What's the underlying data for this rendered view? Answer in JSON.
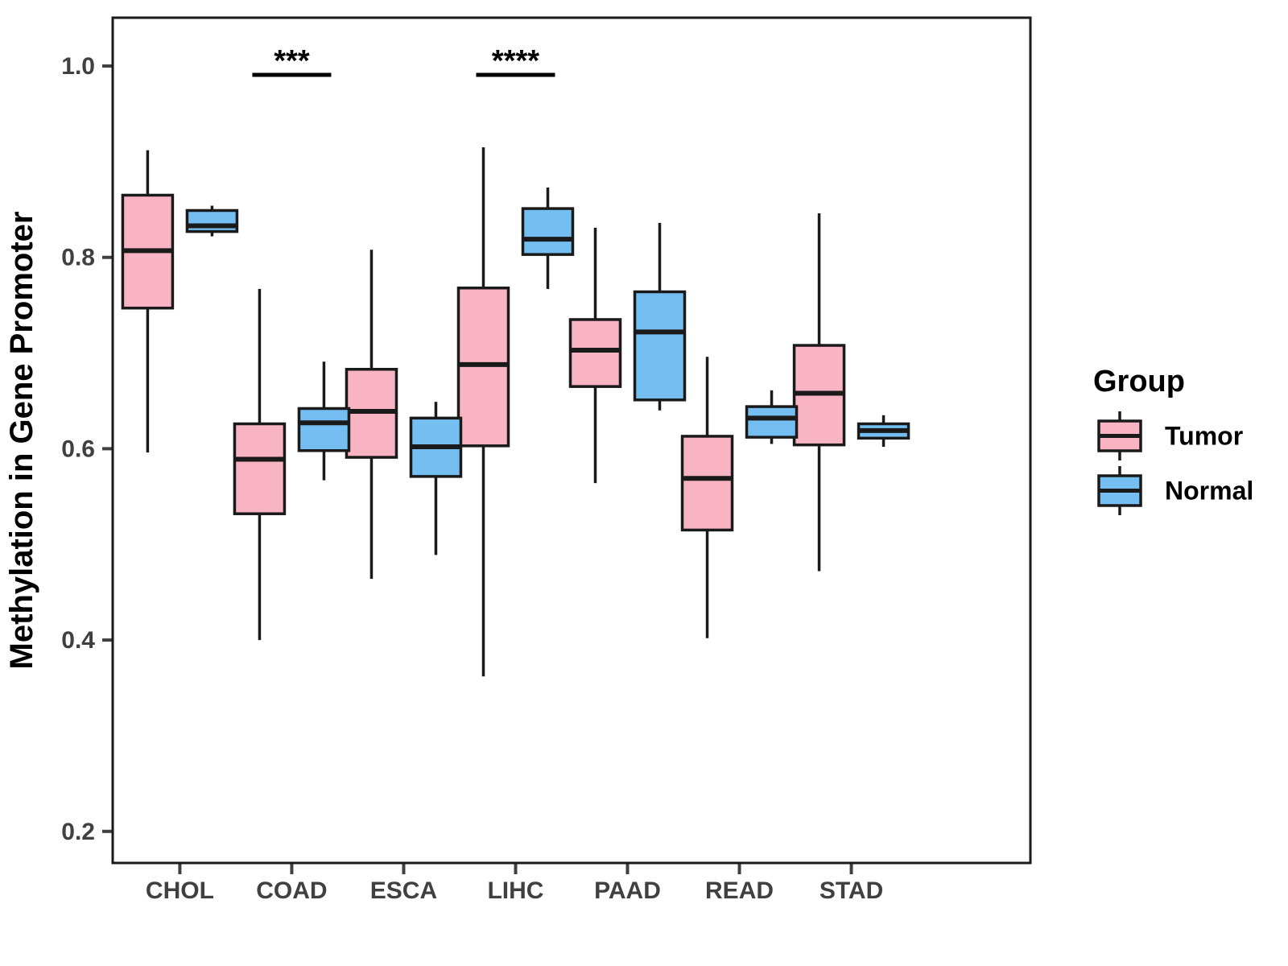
{
  "figure": {
    "background": "#FFFFFF"
  },
  "chart_data": {
    "type": "boxplot",
    "title": "",
    "xlabel": "",
    "ylabel": "Methylation in Gene Promoter",
    "ylim": [
      0.167,
      1.0505
    ],
    "yticks": [
      0.2,
      0.4,
      0.6,
      0.8,
      1.0
    ],
    "ytick_labels": [
      "0.2",
      "0.4",
      "0.6",
      "0.8",
      "1.0"
    ],
    "categories": [
      "CHOL",
      "COAD",
      "ESCA",
      "LIHC",
      "PAAD",
      "READ",
      "STAD"
    ],
    "grid": false,
    "legend": {
      "title": "Group",
      "position": "right",
      "entries": [
        {
          "label": "Tumor",
          "color": "#F9B4C3"
        },
        {
          "label": "Normal",
          "color": "#74BEF2"
        }
      ]
    },
    "series": [
      {
        "name": "Tumor",
        "color": "#F9B4C3",
        "boxes": [
          {
            "category": "CHOL",
            "min": 0.596,
            "q1": 0.747,
            "median": 0.807,
            "q3": 0.865,
            "max": 0.912
          },
          {
            "category": "COAD",
            "min": 0.4,
            "q1": 0.532,
            "median": 0.589,
            "q3": 0.626,
            "max": 0.767
          },
          {
            "category": "ESCA",
            "min": 0.464,
            "q1": 0.591,
            "median": 0.639,
            "q3": 0.683,
            "max": 0.808
          },
          {
            "category": "LIHC",
            "min": 0.362,
            "q1": 0.603,
            "median": 0.688,
            "q3": 0.768,
            "max": 0.915
          },
          {
            "category": "PAAD",
            "min": 0.564,
            "q1": 0.665,
            "median": 0.703,
            "q3": 0.735,
            "max": 0.831
          },
          {
            "category": "READ",
            "min": 0.402,
            "q1": 0.515,
            "median": 0.569,
            "q3": 0.613,
            "max": 0.696
          },
          {
            "category": "STAD",
            "min": 0.472,
            "q1": 0.604,
            "median": 0.658,
            "q3": 0.708,
            "max": 0.846
          }
        ]
      },
      {
        "name": "Normal",
        "color": "#74BEF2",
        "boxes": [
          {
            "category": "CHOL",
            "min": 0.822,
            "q1": 0.827,
            "median": 0.833,
            "q3": 0.849,
            "max": 0.854
          },
          {
            "category": "COAD",
            "min": 0.567,
            "q1": 0.598,
            "median": 0.627,
            "q3": 0.642,
            "max": 0.691
          },
          {
            "category": "ESCA",
            "min": 0.489,
            "q1": 0.571,
            "median": 0.602,
            "q3": 0.632,
            "max": 0.649
          },
          {
            "category": "LIHC",
            "min": 0.767,
            "q1": 0.803,
            "median": 0.819,
            "q3": 0.851,
            "max": 0.873
          },
          {
            "category": "PAAD",
            "min": 0.64,
            "q1": 0.651,
            "median": 0.722,
            "q3": 0.764,
            "max": 0.836
          },
          {
            "category": "READ",
            "min": 0.605,
            "q1": 0.612,
            "median": 0.632,
            "q3": 0.644,
            "max": 0.661
          },
          {
            "category": "STAD",
            "min": 0.602,
            "q1": 0.611,
            "median": 0.619,
            "q3": 0.626,
            "max": 0.635
          }
        ]
      }
    ],
    "annotations": [
      {
        "category": "COAD",
        "label": "***"
      },
      {
        "category": "LIHC",
        "label": "****"
      }
    ],
    "colors": {
      "box_border": "#1A1A1A",
      "panel_border": "#1A1A1A",
      "axis_text": "#404040",
      "axis_title": "#000000",
      "annotation": "#000000"
    }
  }
}
